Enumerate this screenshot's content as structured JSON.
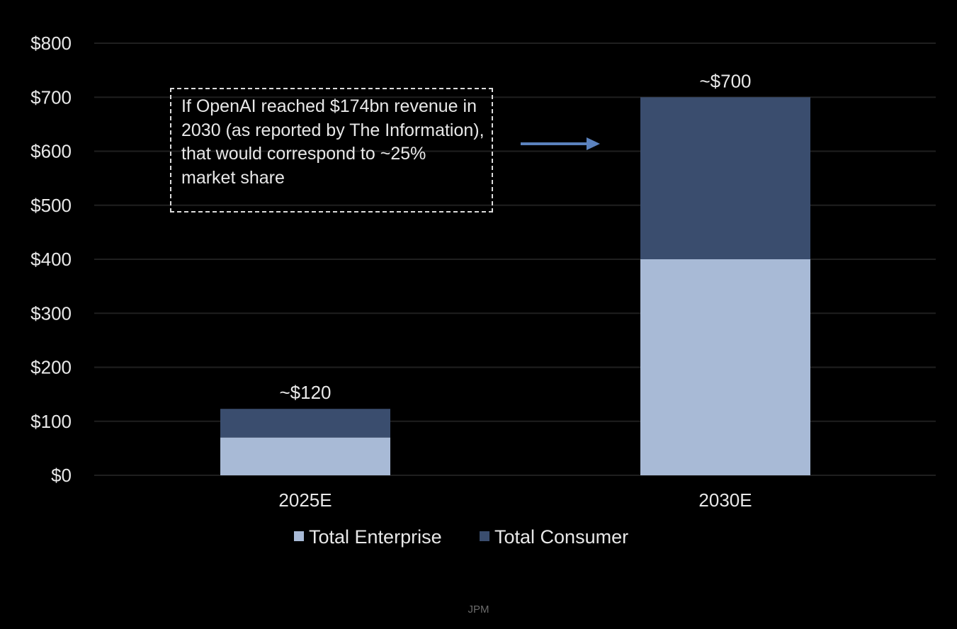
{
  "chart_data": {
    "type": "bar",
    "stacked": true,
    "categories": [
      "2025E",
      "2030E"
    ],
    "series": [
      {
        "name": "Total Enterprise",
        "values": [
          70,
          400
        ],
        "color": "#a8bad6"
      },
      {
        "name": "Total Consumer",
        "values": [
          53,
          300
        ],
        "color": "#3a4d6e"
      }
    ],
    "total_labels": [
      "~$120",
      "~$700"
    ],
    "y_ticks": [
      "$0",
      "$100",
      "$200",
      "$300",
      "$400",
      "$500",
      "$600",
      "$700",
      "$800"
    ],
    "ylim": [
      0,
      800
    ],
    "grid": true,
    "legend_position": "bottom",
    "annotation": "If OpenAI reached $174bn revenue in 2030 (as reported by The Information), that would correspond to ~25% market share",
    "annotation_arrow_color": "#5b82be"
  },
  "source": "JPM"
}
